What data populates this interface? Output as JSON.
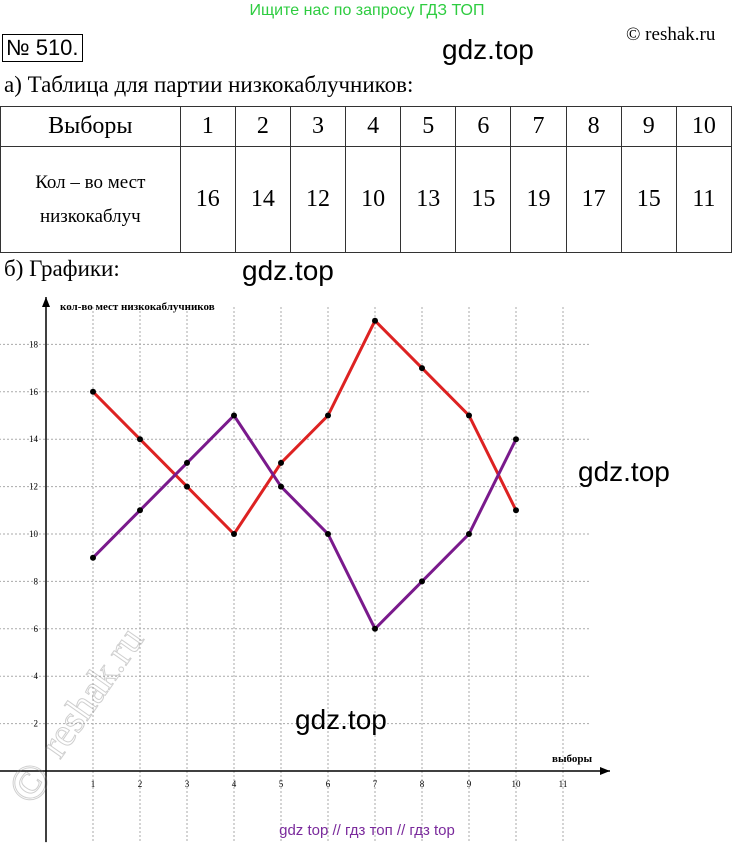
{
  "banner": "Ищите нас по запросу ГДЗ ТОП",
  "number": "№ 510.",
  "copyright": "© reshak.ru",
  "watermarks": [
    "gdz.top",
    "gdz.top",
    "gdz.top",
    "gdz.top"
  ],
  "part_a": "а) Таблица для партии низкокаблучников:",
  "table": {
    "rows": [
      [
        "Выборы",
        "1",
        "2",
        "3",
        "4",
        "5",
        "6",
        "7",
        "8",
        "9",
        "10"
      ],
      [
        "Кол – во мест низкокаблуч",
        "16",
        "14",
        "12",
        "10",
        "13",
        "15",
        "19",
        "17",
        "15",
        "11"
      ]
    ]
  },
  "part_b": "б) Графики:",
  "chart_data": {
    "type": "line",
    "y_label": "кол-во мест низкокаблучников",
    "x_label": "выборы",
    "x": [
      1,
      2,
      3,
      4,
      5,
      6,
      7,
      8,
      9,
      10
    ],
    "series": [
      {
        "color": "#dd2222",
        "values": [
          16,
          14,
          12,
          10,
          13,
          15,
          19,
          17,
          15,
          11
        ]
      },
      {
        "color": "#7a1a8c",
        "values": [
          9,
          11,
          13,
          15,
          12,
          10,
          6,
          8,
          10,
          14
        ]
      }
    ],
    "xlim": [
      -1,
      12
    ],
    "ylim": [
      -3,
      20
    ],
    "xticks": [
      1,
      2,
      3,
      4,
      5,
      6,
      7,
      8,
      9,
      10,
      11
    ],
    "yticks": [
      2,
      4,
      6,
      8,
      10,
      12,
      14,
      16,
      18
    ],
    "grid": true
  },
  "footer": "gdz top // гдз топ // гдз top",
  "reshak_mark": "reshak.ru",
  "reshak_symbol": "©"
}
